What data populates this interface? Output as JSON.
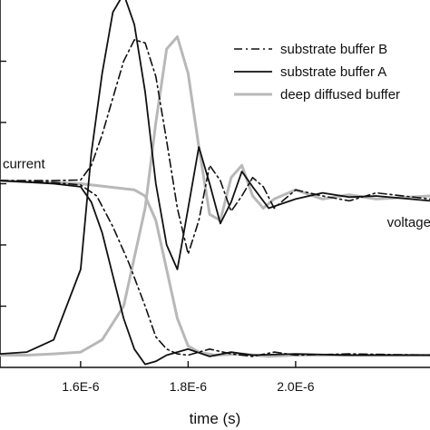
{
  "chart_data": {
    "type": "line",
    "xlabel": "time (s)",
    "ylabel": "",
    "title": "",
    "xlim": [
      1.45e-06,
      2.25e-06
    ],
    "ylim": [
      0,
      6
    ],
    "xticks": [
      {
        "value": 1.6e-06,
        "label": "1.6E-6"
      },
      {
        "value": 1.8e-06,
        "label": "1.8E-6"
      },
      {
        "value": 2e-06,
        "label": "2.0E-6"
      }
    ],
    "yticks": [
      1,
      2,
      3,
      4,
      5
    ],
    "grid": false,
    "legend_position": "top-right",
    "annotations": [
      {
        "text": "current",
        "x": 1.455e-06,
        "y": 3.25
      },
      {
        "text": "voltage",
        "x": 2.17e-06,
        "y": 2.3
      }
    ],
    "series": [
      {
        "name": "substrate buffer B",
        "style": "dashdot",
        "color": "#111111",
        "width": 1.6,
        "x": [
          1.45e-06,
          1.55e-06,
          1.6e-06,
          1.62e-06,
          1.64e-06,
          1.66e-06,
          1.68e-06,
          1.7e-06,
          1.72e-06,
          1.74e-06,
          1.76e-06,
          1.78e-06,
          1.8e-06,
          1.82e-06,
          1.84e-06,
          1.86e-06,
          1.88e-06,
          1.9e-06,
          1.92e-06,
          1.94e-06,
          1.96e-06,
          1.98e-06,
          2e-06,
          2.05e-06,
          2.1e-06,
          2.15e-06,
          2.25e-06
        ],
        "y": [
          3.05,
          3.05,
          3.06,
          3.3,
          3.8,
          4.4,
          5.0,
          5.35,
          5.3,
          4.75,
          3.7,
          2.6,
          1.85,
          2.4,
          3.3,
          3.05,
          2.55,
          2.8,
          3.1,
          2.95,
          2.6,
          2.75,
          2.9,
          2.8,
          2.72,
          2.85,
          2.75
        ]
      },
      {
        "name": "substrate buffer A",
        "style": "solid",
        "color": "#111111",
        "width": 1.8,
        "x": [
          1.45e-06,
          1.5e-06,
          1.55e-06,
          1.6e-06,
          1.62e-06,
          1.64e-06,
          1.66e-06,
          1.68e-06,
          1.7e-06,
          1.72e-06,
          1.74e-06,
          1.76e-06,
          1.78e-06,
          1.8e-06,
          1.82e-06,
          1.84e-06,
          1.86e-06,
          1.88e-06,
          1.9e-06,
          1.92e-06,
          1.95e-06,
          2e-06,
          2.05e-06,
          2.1e-06,
          2.15e-06,
          2.25e-06
        ],
        "y": [
          0.22,
          0.25,
          0.45,
          1.6,
          3.5,
          4.8,
          5.8,
          6.1,
          5.6,
          4.5,
          3.0,
          2.0,
          1.6,
          2.6,
          3.6,
          3.0,
          2.35,
          2.7,
          3.2,
          2.95,
          2.6,
          2.75,
          2.85,
          2.78,
          2.8,
          2.72
        ]
      },
      {
        "name": "deep diffused buffer",
        "style": "solid",
        "color": "#b8b8b8",
        "width": 3,
        "x": [
          1.45e-06,
          1.5e-06,
          1.55e-06,
          1.6e-06,
          1.64e-06,
          1.68e-06,
          1.72e-06,
          1.74e-06,
          1.76e-06,
          1.78e-06,
          1.8e-06,
          1.82e-06,
          1.84e-06,
          1.86e-06,
          1.88e-06,
          1.9e-06,
          1.92e-06,
          1.94e-06,
          1.96e-06,
          2e-06,
          2.05e-06,
          2.1e-06,
          2.15e-06,
          2.25e-06
        ],
        "y": [
          0.2,
          0.2,
          0.22,
          0.25,
          0.45,
          1.0,
          2.6,
          4.0,
          5.2,
          5.4,
          4.8,
          3.6,
          2.5,
          2.4,
          3.1,
          3.3,
          2.8,
          2.6,
          2.75,
          2.9,
          2.75,
          2.82,
          2.75,
          2.8
        ]
      },
      {
        "name": "",
        "style": "dashdot",
        "color": "#111111",
        "width": 1.6,
        "x": [
          1.45e-06,
          1.55e-06,
          1.6e-06,
          1.63e-06,
          1.66e-06,
          1.69e-06,
          1.72e-06,
          1.74e-06,
          1.76e-06,
          1.78e-06,
          1.8e-06,
          1.84e-06,
          1.88e-06,
          1.92e-06,
          1.96e-06,
          2e-06,
          2.1e-06,
          2.25e-06
        ],
        "y": [
          3.05,
          3.02,
          2.98,
          2.8,
          2.3,
          1.7,
          1.0,
          0.5,
          0.3,
          0.22,
          0.2,
          0.3,
          0.22,
          0.18,
          0.25,
          0.2,
          0.22,
          0.2
        ]
      },
      {
        "name": "",
        "style": "solid",
        "color": "#111111",
        "width": 1.8,
        "x": [
          1.45e-06,
          1.55e-06,
          1.6e-06,
          1.62e-06,
          1.64e-06,
          1.66e-06,
          1.68e-06,
          1.7e-06,
          1.72e-06,
          1.74e-06,
          1.76e-06,
          1.8e-06,
          1.84e-06,
          1.88e-06,
          1.92e-06,
          2e-06,
          2.1e-06,
          2.25e-06
        ],
        "y": [
          3.05,
          3.0,
          2.95,
          2.7,
          2.2,
          1.5,
          0.8,
          0.3,
          0.05,
          0.1,
          0.2,
          0.3,
          0.18,
          0.25,
          0.2,
          0.22,
          0.2,
          0.2
        ]
      },
      {
        "name": "",
        "style": "solid",
        "color": "#b8b8b8",
        "width": 3,
        "x": [
          1.45e-06,
          1.55e-06,
          1.6e-06,
          1.65e-06,
          1.7e-06,
          1.72e-06,
          1.74e-06,
          1.76e-06,
          1.78e-06,
          1.8e-06,
          1.82e-06,
          1.85e-06,
          1.9e-06,
          1.95e-06,
          2e-06,
          2.1e-06,
          2.25e-06
        ],
        "y": [
          3.05,
          3.02,
          3.0,
          2.95,
          2.9,
          2.8,
          2.4,
          1.6,
          0.8,
          0.35,
          0.25,
          0.2,
          0.22,
          0.18,
          0.2,
          0.2,
          0.2
        ]
      }
    ]
  }
}
